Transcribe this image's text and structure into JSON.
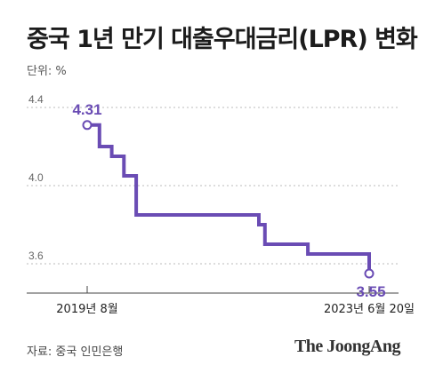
{
  "header": {
    "title": "중국 1년 만기 대출우대금리(LPR) 변화",
    "unit": "단위: %"
  },
  "footer": {
    "source": "자료: 중국 인민은행",
    "brand": "The JoongAng"
  },
  "colors": {
    "line": "#6a4cb4",
    "grid": "#bbbbbb",
    "axis": "#444444"
  },
  "chart_data": {
    "type": "line",
    "title": "중국 1년 만기 대출우대금리(LPR) 변화",
    "ylabel": "단위: %",
    "ylim": [
      3.45,
      4.45
    ],
    "y_ticks": [
      "4.4",
      "4.0",
      "3.6"
    ],
    "y_tick_values": [
      4.4,
      4.0,
      3.6
    ],
    "x_tick_labels": [
      "2019년 8월",
      "2023년 6월 20일"
    ],
    "grid": true,
    "series": [
      {
        "step": true,
        "x": [
          "2019-08",
          "2019-09",
          "2019-10",
          "2019-11",
          "2019-12",
          "2020-01",
          "2020-02",
          "2020-03",
          "2020-04",
          "2021-11",
          "2021-12",
          "2022-01",
          "2022-07",
          "2022-08",
          "2023-05",
          "2023-06"
        ],
        "values": [
          4.31,
          4.31,
          4.2,
          4.2,
          4.15,
          4.15,
          4.05,
          4.05,
          3.85,
          3.85,
          3.8,
          3.7,
          3.7,
          3.65,
          3.65,
          3.55
        ]
      }
    ],
    "annotations": [
      {
        "label": "4.31",
        "value": 4.31,
        "point": "start"
      },
      {
        "label": "3.55",
        "value": 3.55,
        "point": "end"
      }
    ]
  }
}
